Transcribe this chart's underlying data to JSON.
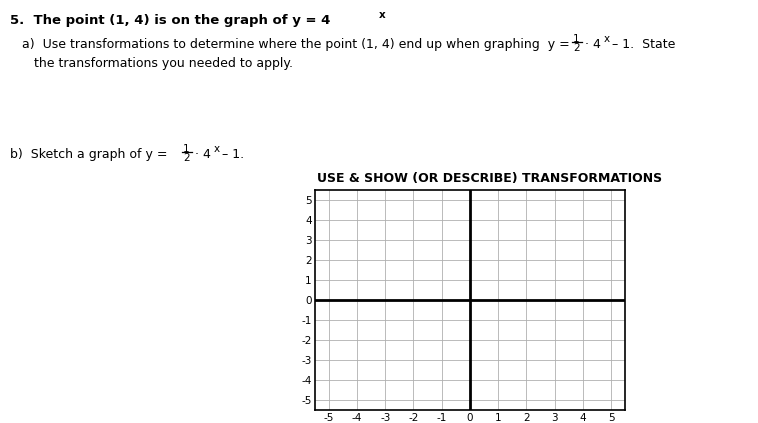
{
  "background_color": "#ffffff",
  "grid_color": "#b0b0b0",
  "axis_color": "#000000",
  "border_color": "#000000",
  "text_color": "#000000",
  "x_min": -5,
  "x_max": 5,
  "y_min": -5,
  "y_max": 5,
  "graph_title": "USE & SHOW (OR DESCRIBE) TRANSFORMATIONS",
  "line1_bold": "5.  The point (1, 4) is on the graph of y = 4",
  "line1_super": "x",
  "part_a_text": "a)  Use transformations to determine where the point (1, 4) end up when graphing  y = ",
  "part_a_frac_num": "1",
  "part_a_frac_den": "2",
  "part_a_rest": "· 4",
  "part_a_super": "x",
  "part_a_end": " – 1.  State",
  "part_a_line2": "     the transformations you needed to apply.",
  "part_b_text": "b)  Sketch a graph of y = ",
  "part_b_frac_num": "1",
  "part_b_frac_den": "2",
  "part_b_rest": "· 4",
  "part_b_super": "x",
  "part_b_end": " – 1."
}
